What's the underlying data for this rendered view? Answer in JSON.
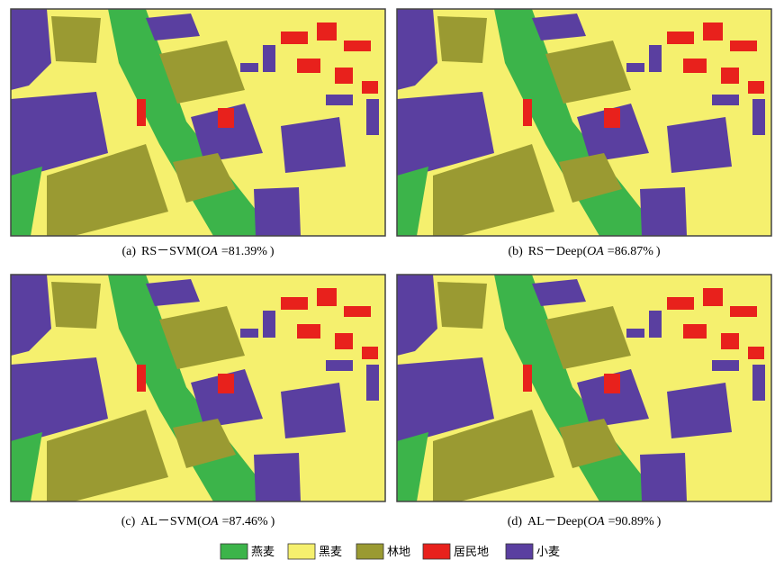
{
  "panels": [
    {
      "label": "(a)",
      "method": "RS－SVM(",
      "metric": "OA",
      "score": "=81.39%",
      "close": ")"
    },
    {
      "label": "(b)",
      "method": "RS－Deep(",
      "metric": "OA",
      "score": "=86.87%",
      "close": ")"
    },
    {
      "label": "(c)",
      "method": "AL－SVM(",
      "metric": "OA",
      "score": "=87.46%",
      "close": ")"
    },
    {
      "label": "(d)",
      "method": "AL－Deep(",
      "metric": "OA",
      "score": "=90.89%",
      "close": ")"
    }
  ],
  "legend": [
    {
      "label": "燕麦",
      "color": "#3cb44a"
    },
    {
      "label": "黑麦",
      "color": "#f5f06e"
    },
    {
      "label": "林地",
      "color": "#9a9a32"
    },
    {
      "label": "居民地",
      "color": "#e8211c"
    },
    {
      "label": "小麦",
      "color": "#5a3fa0"
    }
  ]
}
